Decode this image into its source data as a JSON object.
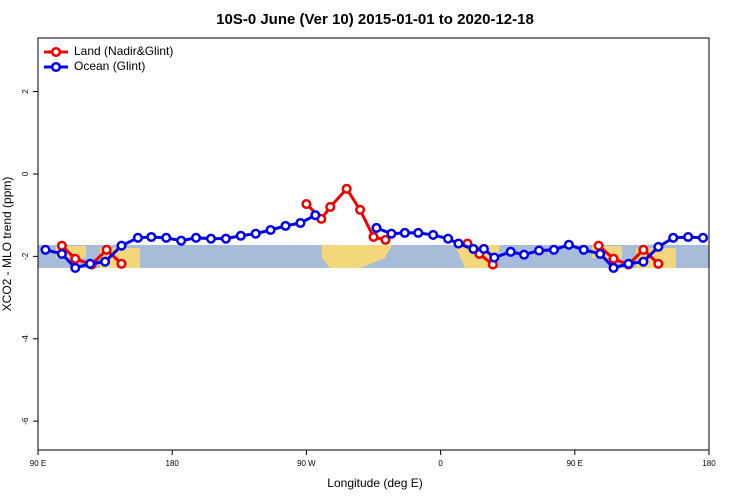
{
  "chart_data": {
    "type": "line",
    "title": "10S-0 June (Ver 10)   2015-01-01 to 2020-12-18",
    "x_label": "Longitude (deg E)",
    "y_label": "XCO2 - MLO trend (ppm)",
    "xlim": [
      90,
      540
    ],
    "xticks": [
      {
        "value": 90,
        "label": "90 E"
      },
      180,
      {
        "value": 270,
        "label": "90 W"
      },
      {
        "value": 360,
        "label": "0"
      },
      {
        "value": 450,
        "label": "90 E"
      },
      {
        "value": 540,
        "label": "180"
      }
    ],
    "ylim": [
      -6.7,
      3.3
    ],
    "yticks": [
      2,
      0,
      -2,
      -4,
      -6
    ],
    "legend": "top-left",
    "series": [
      {
        "name": "Land (Nadir&Glint)",
        "color": "#ee0000",
        "x": [
          106,
          115,
          126,
          136,
          146,
          200,
          270,
          280,
          286,
          297,
          306,
          315,
          323,
          350,
          378,
          386,
          395,
          430,
          466,
          476,
          486,
          496,
          506
        ],
        "values": [
          -1.74,
          -2.06,
          -2.2,
          -1.84,
          -2.18,
          null,
          -0.73,
          -1.09,
          -0.8,
          -0.36,
          -0.87,
          -1.53,
          -1.6,
          null,
          -1.69,
          -1.94,
          -2.2,
          null,
          -1.74,
          -2.06,
          -2.2,
          -1.84,
          -2.18
        ]
      },
      {
        "name": "Ocean (Glint)",
        "color": "#0000ee",
        "x": [
          95,
          106,
          115,
          125,
          135,
          146,
          157,
          166,
          176,
          186,
          196,
          206,
          216,
          226,
          236,
          246,
          256,
          266,
          276,
          296,
          317,
          327,
          336,
          345,
          355,
          365,
          372,
          382,
          389,
          396,
          407,
          416,
          426,
          436,
          446,
          456,
          467,
          476,
          486,
          496,
          506,
          516,
          526,
          536
        ],
        "values": [
          -1.84,
          -1.94,
          -2.28,
          -2.18,
          -2.13,
          -1.74,
          -1.55,
          -1.53,
          -1.55,
          -1.62,
          -1.55,
          -1.57,
          -1.57,
          -1.5,
          -1.45,
          -1.36,
          -1.26,
          -1.19,
          -1.0,
          null,
          -1.31,
          -1.45,
          -1.43,
          -1.43,
          -1.48,
          -1.57,
          -1.69,
          -1.82,
          -1.82,
          -2.03,
          -1.89,
          -1.96,
          -1.86,
          -1.84,
          -1.72,
          -1.84,
          -1.94,
          -2.28,
          -2.18,
          -2.13,
          -1.77,
          -1.55,
          -1.53,
          -1.55
        ]
      }
    ]
  }
}
